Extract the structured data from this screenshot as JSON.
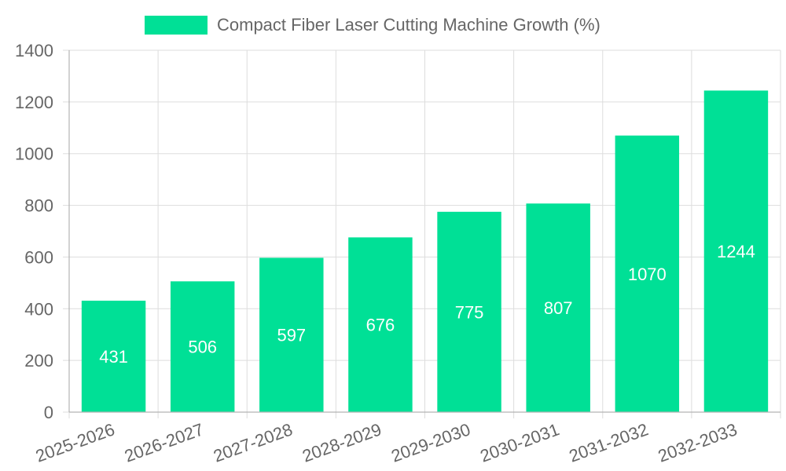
{
  "colors": {
    "bar": "#00e096",
    "grid": "#dddddd",
    "axis": "#b3b3b3",
    "text": "#666666",
    "bar_label": "#ffffff"
  },
  "chart_data": {
    "type": "bar",
    "title": "",
    "xlabel": "",
    "ylabel": "",
    "legend": {
      "placement": "top-center",
      "entries": [
        "Compact Fiber Laser Cutting Machine Growth (%)"
      ]
    },
    "grid": true,
    "categories": [
      "2025-2026",
      "2026-2027",
      "2027-2028",
      "2028-2029",
      "2029-2030",
      "2030-2031",
      "2031-2032",
      "2032-2033"
    ],
    "series": [
      {
        "name": "Compact Fiber Laser Cutting Machine Growth (%)",
        "values": [
          431,
          506,
          597,
          676,
          775,
          807,
          1070,
          1244
        ]
      }
    ],
    "ylim": [
      0,
      1400
    ],
    "yticks": [
      "0",
      "200",
      "400",
      "600",
      "800",
      "1000",
      "1200",
      "1400"
    ]
  }
}
